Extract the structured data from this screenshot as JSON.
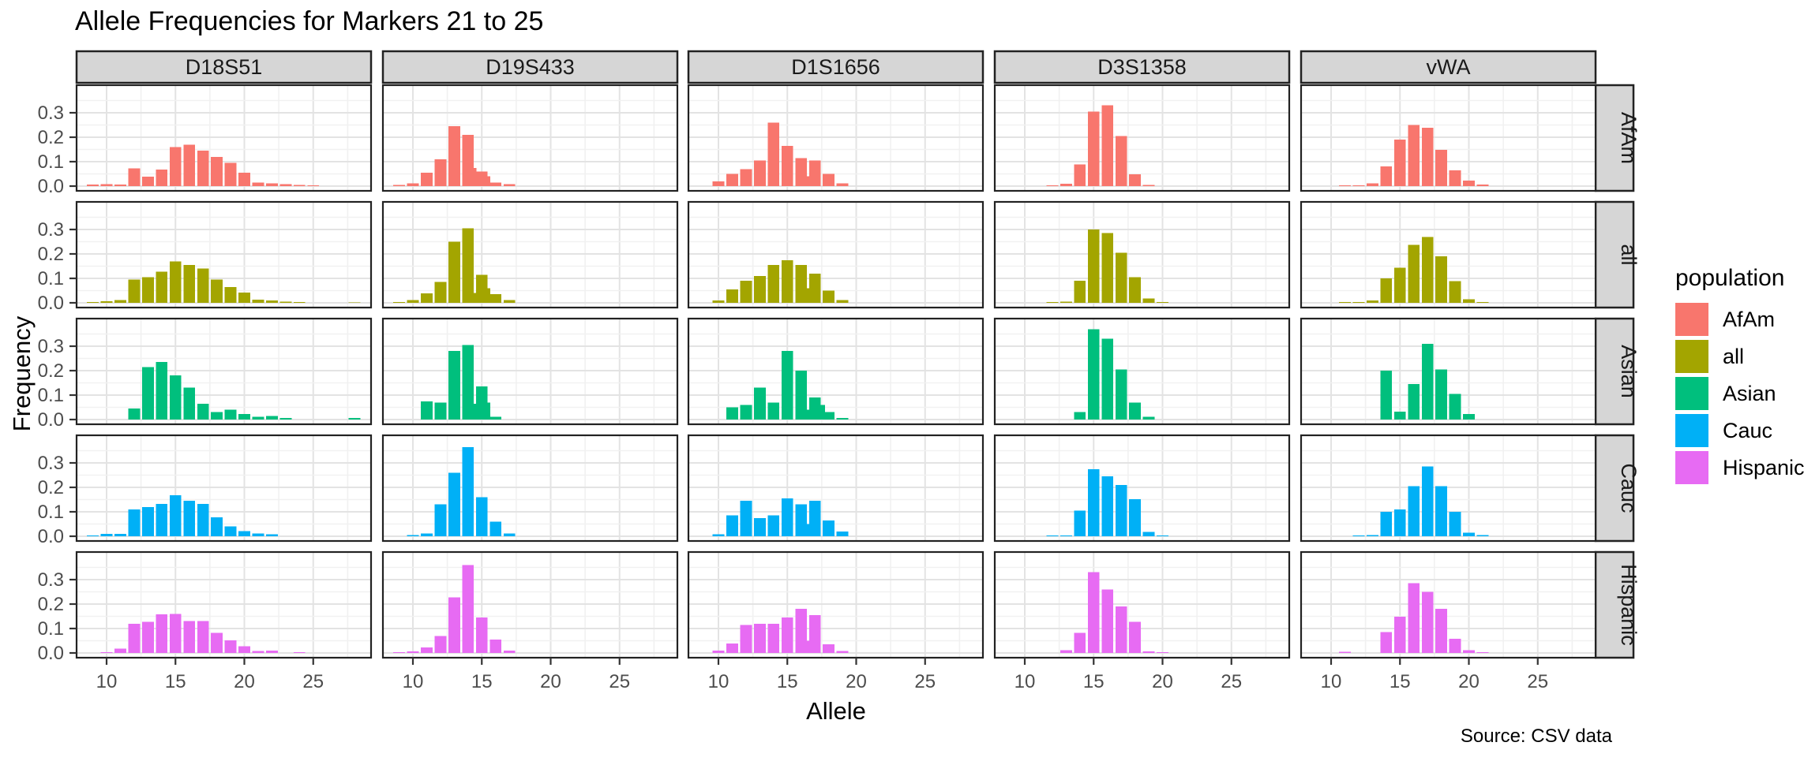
{
  "title": "Allele Frequencies for Markers 21 to 25",
  "caption": "Source: CSV data",
  "axes": {
    "x_label": "Allele",
    "y_label": "Frequency",
    "x_tick_labels": [
      "10",
      "15",
      "20",
      "25"
    ],
    "y_tick_labels": [
      "0.0",
      "0.1",
      "0.2",
      "0.3"
    ]
  },
  "legend": {
    "title": "population",
    "items": [
      {
        "label": "AfAm",
        "color": "#F8766D"
      },
      {
        "label": "all",
        "color": "#A3A500"
      },
      {
        "label": "Asian",
        "color": "#00BF7D"
      },
      {
        "label": "Cauc",
        "color": "#00B0F6"
      },
      {
        "label": "Hispanic",
        "color": "#E76BF3"
      }
    ]
  },
  "chart_data": {
    "type": "bar",
    "title": "Allele Frequencies for Markers 21 to 25",
    "xlabel": "Allele",
    "ylabel": "Frequency",
    "caption": "Source: CSV data",
    "facet_columns": [
      "D18S51",
      "D19S433",
      "D1S1656",
      "D3S1358",
      "vWA"
    ],
    "facet_rows": [
      "AfAm",
      "all",
      "Asian",
      "Cauc",
      "Hispanic"
    ],
    "legend_title": "population",
    "series_colors": {
      "AfAm": "#F8766D",
      "all": "#A3A500",
      "Asian": "#00BF7D",
      "Cauc": "#00B0F6",
      "Hispanic": "#E76BF3"
    },
    "x_ticks": [
      10,
      15,
      20,
      25
    ],
    "y_ticks": [
      0.0,
      0.1,
      0.2,
      0.3
    ],
    "x_range": [
      7.8,
      29.2
    ],
    "y_range": [
      0,
      0.41
    ],
    "grid": "major-and-minor",
    "legend_position": "right",
    "frequencies": {
      "D18S51": {
        "AfAm": [
          [
            9,
            0.006
          ],
          [
            10,
            0.008
          ],
          [
            11,
            0.006
          ],
          [
            12,
            0.073
          ],
          [
            13,
            0.038
          ],
          [
            14,
            0.068
          ],
          [
            15,
            0.16
          ],
          [
            16,
            0.17
          ],
          [
            17,
            0.145
          ],
          [
            18,
            0.12
          ],
          [
            19,
            0.095
          ],
          [
            20,
            0.055
          ],
          [
            21,
            0.015
          ],
          [
            22,
            0.012
          ],
          [
            23,
            0.008
          ],
          [
            24,
            0.005
          ],
          [
            25,
            0.004
          ]
        ],
        "all": [
          [
            9,
            0.003
          ],
          [
            10,
            0.006
          ],
          [
            11,
            0.012
          ],
          [
            12,
            0.095
          ],
          [
            13,
            0.105
          ],
          [
            14,
            0.128
          ],
          [
            15,
            0.17
          ],
          [
            16,
            0.155
          ],
          [
            17,
            0.14
          ],
          [
            18,
            0.095
          ],
          [
            19,
            0.065
          ],
          [
            20,
            0.042
          ],
          [
            21,
            0.013
          ],
          [
            22,
            0.01
          ],
          [
            23,
            0.005
          ],
          [
            24,
            0.003
          ],
          [
            28,
            0.002
          ]
        ],
        "Asian": [
          [
            12,
            0.045
          ],
          [
            13,
            0.215
          ],
          [
            14,
            0.235
          ],
          [
            15,
            0.18
          ],
          [
            16,
            0.13
          ],
          [
            17,
            0.065
          ],
          [
            18,
            0.03
          ],
          [
            19,
            0.04
          ],
          [
            20,
            0.022
          ],
          [
            21,
            0.012
          ],
          [
            22,
            0.015
          ],
          [
            23,
            0.007
          ],
          [
            28,
            0.007
          ]
        ],
        "Cauc": [
          [
            9,
            0.004
          ],
          [
            10,
            0.01
          ],
          [
            11,
            0.01
          ],
          [
            12,
            0.11
          ],
          [
            13,
            0.12
          ],
          [
            14,
            0.133
          ],
          [
            15,
            0.168
          ],
          [
            16,
            0.145
          ],
          [
            17,
            0.133
          ],
          [
            18,
            0.077
          ],
          [
            19,
            0.04
          ],
          [
            20,
            0.021
          ],
          [
            21,
            0.012
          ],
          [
            22,
            0.008
          ]
        ],
        "Hispanic": [
          [
            10,
            0.004
          ],
          [
            11,
            0.018
          ],
          [
            12,
            0.12
          ],
          [
            13,
            0.127
          ],
          [
            14,
            0.158
          ],
          [
            15,
            0.16
          ],
          [
            16,
            0.13
          ],
          [
            17,
            0.13
          ],
          [
            18,
            0.082
          ],
          [
            19,
            0.052
          ],
          [
            20,
            0.027
          ],
          [
            21,
            0.008
          ],
          [
            22,
            0.01
          ],
          [
            24,
            0.004
          ]
        ]
      },
      "D19S433": {
        "AfAm": [
          [
            9,
            0.005
          ],
          [
            10,
            0.012
          ],
          [
            11,
            0.055
          ],
          [
            12,
            0.11
          ],
          [
            13,
            0.245
          ],
          [
            14,
            0.21
          ],
          [
            14.2,
            0.075
          ],
          [
            15,
            0.06
          ],
          [
            15.2,
            0.04
          ],
          [
            16,
            0.015
          ],
          [
            17,
            0.008
          ]
        ],
        "all": [
          [
            9,
            0.004
          ],
          [
            10,
            0.012
          ],
          [
            11,
            0.038
          ],
          [
            12,
            0.085
          ],
          [
            13,
            0.25
          ],
          [
            14,
            0.305
          ],
          [
            14.2,
            0.04
          ],
          [
            15,
            0.115
          ],
          [
            15.2,
            0.06
          ],
          [
            16,
            0.035
          ],
          [
            17,
            0.012
          ]
        ],
        "Asian": [
          [
            11,
            0.075
          ],
          [
            12,
            0.07
          ],
          [
            13,
            0.28
          ],
          [
            14,
            0.305
          ],
          [
            14.2,
            0.065
          ],
          [
            15,
            0.135
          ],
          [
            15.2,
            0.07
          ],
          [
            16,
            0.012
          ]
        ],
        "Cauc": [
          [
            10,
            0.005
          ],
          [
            11,
            0.012
          ],
          [
            12,
            0.13
          ],
          [
            13,
            0.26
          ],
          [
            14,
            0.365
          ],
          [
            15,
            0.16
          ],
          [
            16,
            0.06
          ],
          [
            17,
            0.012
          ]
        ],
        "Hispanic": [
          [
            9,
            0.004
          ],
          [
            10,
            0.006
          ],
          [
            11,
            0.022
          ],
          [
            12,
            0.07
          ],
          [
            13,
            0.228
          ],
          [
            14,
            0.36
          ],
          [
            15,
            0.145
          ],
          [
            16,
            0.055
          ],
          [
            17,
            0.01
          ]
        ]
      },
      "D1S1656": {
        "AfAm": [
          [
            10,
            0.02
          ],
          [
            11,
            0.05
          ],
          [
            12,
            0.07
          ],
          [
            13,
            0.105
          ],
          [
            14,
            0.26
          ],
          [
            15,
            0.165
          ],
          [
            16,
            0.115
          ],
          [
            16.3,
            0.04
          ],
          [
            17,
            0.105
          ],
          [
            18,
            0.05
          ],
          [
            19,
            0.012
          ]
        ],
        "all": [
          [
            10,
            0.01
          ],
          [
            11,
            0.055
          ],
          [
            12,
            0.09
          ],
          [
            13,
            0.11
          ],
          [
            14,
            0.155
          ],
          [
            15,
            0.175
          ],
          [
            16,
            0.155
          ],
          [
            16.3,
            0.06
          ],
          [
            17,
            0.12
          ],
          [
            18,
            0.05
          ],
          [
            19,
            0.012
          ]
        ],
        "Asian": [
          [
            11,
            0.05
          ],
          [
            12,
            0.06
          ],
          [
            13,
            0.13
          ],
          [
            14,
            0.07
          ],
          [
            15,
            0.28
          ],
          [
            16,
            0.2
          ],
          [
            16.3,
            0.04
          ],
          [
            17,
            0.09
          ],
          [
            17.3,
            0.06
          ],
          [
            18,
            0.03
          ],
          [
            19,
            0.006
          ]
        ],
        "Cauc": [
          [
            10,
            0.008
          ],
          [
            11,
            0.085
          ],
          [
            12,
            0.145
          ],
          [
            13,
            0.075
          ],
          [
            14,
            0.085
          ],
          [
            15,
            0.155
          ],
          [
            16,
            0.13
          ],
          [
            16.3,
            0.05
          ],
          [
            17,
            0.145
          ],
          [
            18,
            0.065
          ],
          [
            19,
            0.02
          ]
        ],
        "Hispanic": [
          [
            10,
            0.01
          ],
          [
            11,
            0.038
          ],
          [
            12,
            0.115
          ],
          [
            13,
            0.12
          ],
          [
            14,
            0.12
          ],
          [
            15,
            0.145
          ],
          [
            16,
            0.18
          ],
          [
            16.3,
            0.05
          ],
          [
            17,
            0.155
          ],
          [
            18,
            0.035
          ],
          [
            19,
            0.008
          ]
        ]
      },
      "D3S1358": {
        "AfAm": [
          [
            12,
            0.004
          ],
          [
            13,
            0.009
          ],
          [
            14,
            0.088
          ],
          [
            15,
            0.305
          ],
          [
            16,
            0.33
          ],
          [
            17,
            0.205
          ],
          [
            18,
            0.048
          ],
          [
            19,
            0.005
          ]
        ],
        "all": [
          [
            12,
            0.003
          ],
          [
            13,
            0.005
          ],
          [
            14,
            0.09
          ],
          [
            15,
            0.3
          ],
          [
            16,
            0.285
          ],
          [
            17,
            0.205
          ],
          [
            18,
            0.105
          ],
          [
            19,
            0.018
          ],
          [
            20,
            0.003
          ]
        ],
        "Asian": [
          [
            14,
            0.03
          ],
          [
            15,
            0.37
          ],
          [
            16,
            0.33
          ],
          [
            17,
            0.205
          ],
          [
            18,
            0.07
          ],
          [
            19,
            0.012
          ]
        ],
        "Cauc": [
          [
            12,
            0.004
          ],
          [
            13,
            0.004
          ],
          [
            14,
            0.105
          ],
          [
            15,
            0.275
          ],
          [
            16,
            0.245
          ],
          [
            17,
            0.21
          ],
          [
            18,
            0.152
          ],
          [
            19,
            0.018
          ],
          [
            20,
            0.004
          ]
        ],
        "Hispanic": [
          [
            13,
            0.012
          ],
          [
            14,
            0.082
          ],
          [
            15,
            0.33
          ],
          [
            16,
            0.26
          ],
          [
            17,
            0.19
          ],
          [
            18,
            0.128
          ],
          [
            19,
            0.006
          ],
          [
            20,
            0.003
          ]
        ]
      },
      "vWA": {
        "AfAm": [
          [
            11,
            0.004
          ],
          [
            12,
            0.004
          ],
          [
            13,
            0.012
          ],
          [
            14,
            0.08
          ],
          [
            15,
            0.19
          ],
          [
            16,
            0.25
          ],
          [
            17,
            0.238
          ],
          [
            18,
            0.148
          ],
          [
            19,
            0.065
          ],
          [
            20,
            0.022
          ],
          [
            21,
            0.006
          ]
        ],
        "all": [
          [
            11,
            0.003
          ],
          [
            12,
            0.004
          ],
          [
            13,
            0.01
          ],
          [
            14,
            0.1
          ],
          [
            15,
            0.143
          ],
          [
            16,
            0.237
          ],
          [
            17,
            0.27
          ],
          [
            18,
            0.19
          ],
          [
            19,
            0.088
          ],
          [
            20,
            0.015
          ],
          [
            21,
            0.004
          ]
        ],
        "Asian": [
          [
            14,
            0.2
          ],
          [
            15,
            0.032
          ],
          [
            16,
            0.145
          ],
          [
            17,
            0.31
          ],
          [
            18,
            0.205
          ],
          [
            19,
            0.105
          ],
          [
            20,
            0.022
          ]
        ],
        "Cauc": [
          [
            12,
            0.004
          ],
          [
            13,
            0.005
          ],
          [
            14,
            0.1
          ],
          [
            15,
            0.11
          ],
          [
            16,
            0.205
          ],
          [
            17,
            0.285
          ],
          [
            18,
            0.205
          ],
          [
            19,
            0.1
          ],
          [
            20,
            0.014
          ],
          [
            21,
            0.005
          ]
        ],
        "Hispanic": [
          [
            11,
            0.005
          ],
          [
            14,
            0.086
          ],
          [
            15,
            0.148
          ],
          [
            16,
            0.285
          ],
          [
            17,
            0.25
          ],
          [
            18,
            0.18
          ],
          [
            19,
            0.058
          ],
          [
            20,
            0.012
          ],
          [
            21,
            0.004
          ]
        ]
      }
    }
  },
  "theme": {
    "strip_bg": "#D6D6D6",
    "panel_border": "#222222",
    "grid_major": "#E3E3E3",
    "grid_minor": "#F1F1F1",
    "axis_text": "#4D4D4D",
    "tick_color": "#333333"
  }
}
